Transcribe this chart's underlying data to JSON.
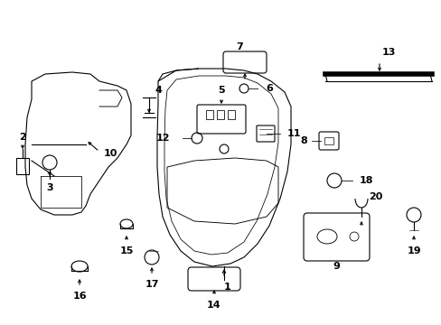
{
  "bg_color": "#ffffff",
  "fig_width": 4.89,
  "fig_height": 3.6,
  "dpi": 100,
  "lw": 0.8
}
